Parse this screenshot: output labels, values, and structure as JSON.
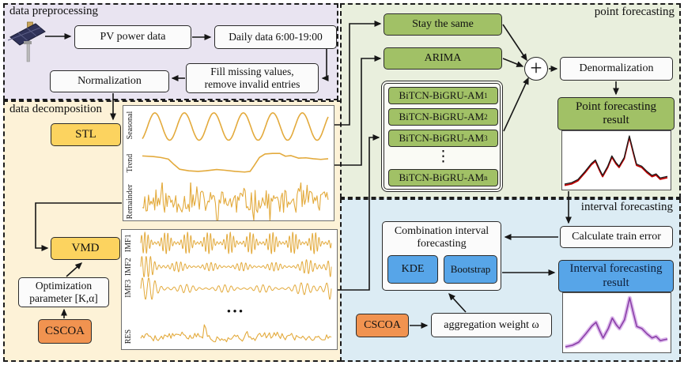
{
  "regions": {
    "preprocessing": "data preprocessing",
    "decomposition": "data decomposition",
    "point": "point forecasting",
    "interval": "interval forecasting"
  },
  "preprocessing": {
    "pv_power_data": "PV power data",
    "daily_data": "Daily data 6:00-19:00",
    "fill_missing_line1": "Fill missing values,",
    "fill_missing_line2": "remove invalid entries",
    "normalization": "Normalization"
  },
  "decomposition": {
    "stl": "STL",
    "vmd": "VMD",
    "optimization_line1": "Optimization",
    "optimization_line2": "parameter [K,α]",
    "cscoa": "CSCOA",
    "stl_components": [
      "Seasonal",
      "Trend",
      "Remainder"
    ],
    "imf_components": [
      "IMF1",
      "IMF2",
      "IMF3",
      "RES"
    ],
    "imf_ellipsis": "•••"
  },
  "point_forecasting": {
    "stay_the_same": "Stay the same",
    "arima": "ARIMA",
    "models": [
      {
        "base": "BiTCN-BiGRU-AM",
        "sub": "1"
      },
      {
        "base": "BiTCN-BiGRU-AM",
        "sub": "2"
      },
      {
        "base": "BiTCN-BiGRU-AM",
        "sub": "3"
      },
      {
        "base": "BiTCN-BiGRU-AM",
        "sub": "n"
      }
    ],
    "models_ellipsis": "⋮",
    "sum_symbol": "+",
    "denormalization": "Denormalization",
    "result_line1": "Point forecasting",
    "result_line2": "result"
  },
  "interval_forecasting": {
    "calculate_train_error": "Calculate train error",
    "combination_line1": "Combination interval",
    "combination_line2": "forecasting",
    "kde": "KDE",
    "bootstrap": "Bootstrap",
    "cscoa": "CSCOA",
    "aggregation_weight": "aggregation weight ω",
    "result_line1": "Interval forecasting",
    "result_line2": "result"
  },
  "colors": {
    "green_box": "#a1c166",
    "yellow_box": "#fcd35f",
    "orange_box": "#f19350",
    "blue_box": "#57a5e8",
    "region_preprocessing_bg": "#e9e4f1",
    "region_decomposition_bg": "#fdf2d7",
    "region_point_bg": "#e9efdd",
    "region_interval_bg": "#dcecf4",
    "signal": "#e3aa3c",
    "point_line": "#1a1a1a",
    "point_actual": "#c00000",
    "interval_line": "#8a3fa8",
    "interval_band": "#ddb9ec"
  }
}
